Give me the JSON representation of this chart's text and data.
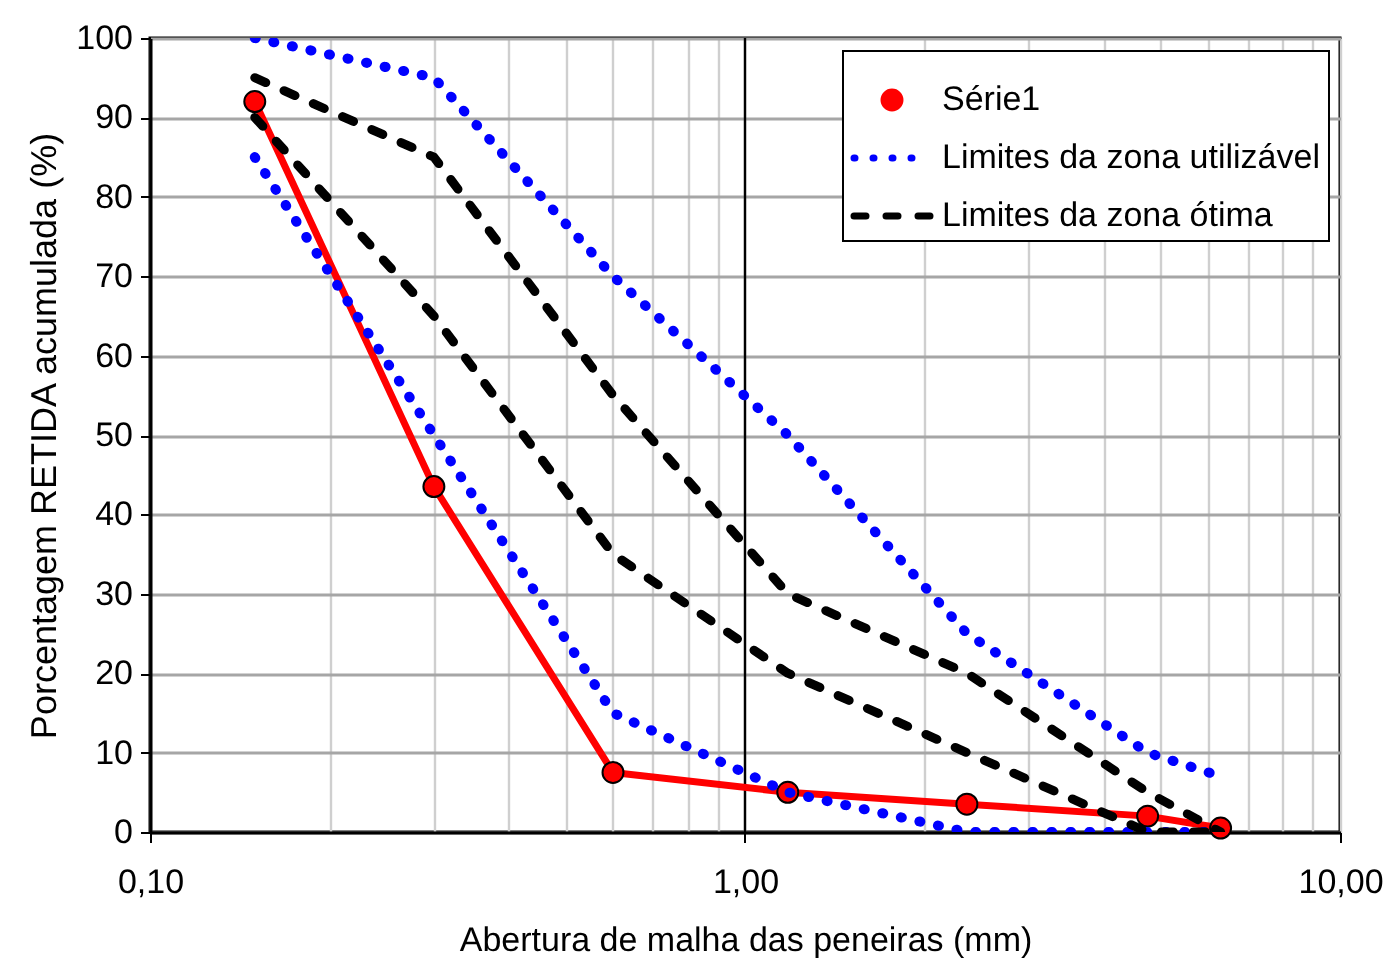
{
  "chart_data": {
    "type": "line",
    "xlabel": "Abertura de malha das peneiras (mm)",
    "ylabel": "Porcentagem RETIDA acumulada (%)",
    "x": [
      0.15,
      0.3,
      0.6,
      1.18,
      2.36,
      4.75,
      6.3
    ],
    "series": [
      {
        "name": "Série1",
        "color": "#ff0000",
        "marker": "circle",
        "line_style": "solid",
        "values": [
          92,
          43.5,
          7.5,
          5,
          3.5,
          2,
          0.5
        ]
      },
      {
        "name": "Limites da zona utilizável",
        "color": "#0000ff",
        "line_style": "dotted",
        "values": [
          100,
          95,
          70,
          50,
          25,
          10,
          7
        ]
      },
      {
        "color": "#0000ff",
        "line_style": "dotted",
        "values": [
          85,
          50,
          15,
          5,
          0,
          0,
          0
        ]
      },
      {
        "name": "Limites da zona ótima",
        "color": "#000000",
        "line_style": "dashed",
        "values": [
          95,
          85,
          55,
          30,
          20,
          5,
          0
        ]
      },
      {
        "color": "#000000",
        "line_style": "dashed",
        "values": [
          90,
          65,
          35,
          20,
          10,
          0,
          0
        ]
      }
    ],
    "ref_lines": [
      {
        "axis": "x",
        "value": 1,
        "color": "#000000"
      }
    ],
    "log": "x",
    "xlim": [
      0.1,
      10
    ],
    "xticks": [
      {
        "value": 0.1,
        "label": "0,10"
      },
      {
        "value": 0.2,
        "label": null
      },
      {
        "value": 0.3,
        "label": null
      },
      {
        "value": 0.4,
        "label": null
      },
      {
        "value": 0.5,
        "label": null
      },
      {
        "value": 0.6,
        "label": null
      },
      {
        "value": 0.7,
        "label": null
      },
      {
        "value": 0.8,
        "label": null
      },
      {
        "value": 0.9,
        "label": null
      },
      {
        "value": 1,
        "label": "1,00"
      },
      {
        "value": 2,
        "label": null
      },
      {
        "value": 3,
        "label": null
      },
      {
        "value": 4,
        "label": null
      },
      {
        "value": 5,
        "label": null
      },
      {
        "value": 6,
        "label": null
      },
      {
        "value": 7,
        "label": null
      },
      {
        "value": 8,
        "label": null
      },
      {
        "value": 9,
        "label": null
      },
      {
        "value": 10,
        "label": "10,00"
      }
    ],
    "ylim": [
      0,
      100
    ],
    "yticks": [
      0,
      10,
      20,
      30,
      40,
      50,
      60,
      70,
      80,
      90,
      100
    ],
    "grid": true,
    "legend": "top right"
  }
}
